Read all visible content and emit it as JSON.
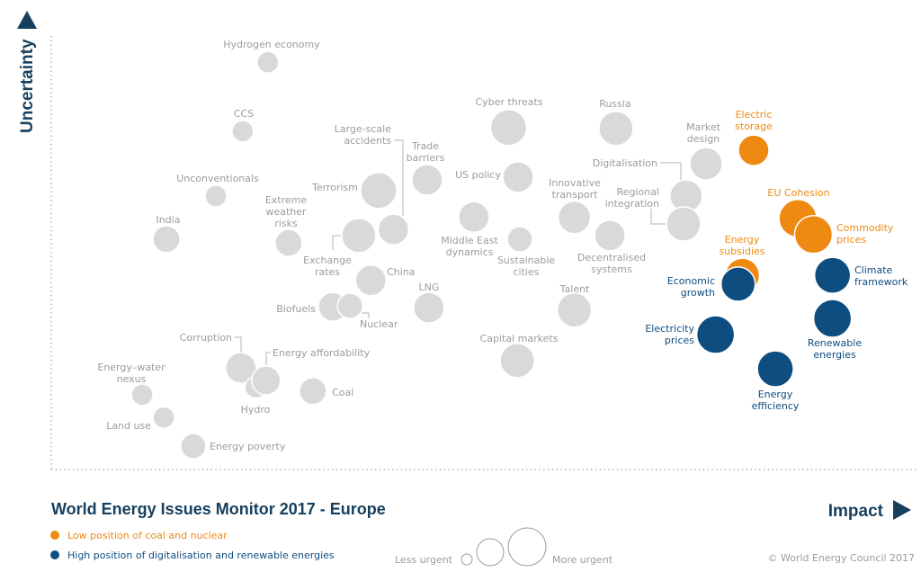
{
  "chart_data": {
    "type": "scatter",
    "title": "World Energy Issues Monitor 2017 - Europe",
    "xlabel": "Impact",
    "ylabel": "Uncertainty",
    "xlim": [
      0,
      100
    ],
    "ylim": [
      0,
      100
    ],
    "grid": false,
    "size_encoding": "urgency",
    "colors": {
      "neutral": "#d9d9d9",
      "orange": "#ee8a12",
      "blue": "#0e4d80",
      "navy": "#17405f"
    },
    "legend": [
      {
        "label": "Low position of coal and nuclear",
        "color": "#ee8a12",
        "group": "orange"
      },
      {
        "label": "High position of digitalisation and renewable energies",
        "color": "#0e4d80",
        "group": "blue"
      }
    ],
    "size_legend": {
      "less": "Less urgent",
      "more": "More urgent"
    },
    "copyright": "© World Energy Council 2017",
    "points": [
      {
        "label": [
          "Hydrogen economy"
        ],
        "impact": 25.0,
        "uncertainty": 88.5,
        "urgency": 2,
        "group": "neutral"
      },
      {
        "label": [
          "CCS"
        ],
        "impact": 22.1,
        "uncertainty": 73.6,
        "urgency": 2,
        "group": "neutral"
      },
      {
        "label": [
          "Unconventionals"
        ],
        "impact": 19.0,
        "uncertainty": 59.6,
        "urgency": 2,
        "group": "neutral"
      },
      {
        "label": [
          "India"
        ],
        "impact": 13.3,
        "uncertainty": 50.3,
        "urgency": 5,
        "group": "neutral"
      },
      {
        "label": [
          "Extreme",
          "weather",
          "risks"
        ],
        "impact": 27.4,
        "uncertainty": 49.5,
        "urgency": 5,
        "group": "neutral"
      },
      {
        "label": [
          "Terrorism"
        ],
        "impact": 37.8,
        "uncertainty": 60.8,
        "urgency": 10,
        "group": "neutral"
      },
      {
        "label": [
          "Large-scale",
          "accidents"
        ],
        "impact": 39.5,
        "uncertainty": 52.4,
        "urgency": 7,
        "group": "neutral"
      },
      {
        "label": [
          "Exchange",
          "rates"
        ],
        "impact": 35.5,
        "uncertainty": 51.1,
        "urgency": 9,
        "group": "neutral"
      },
      {
        "label": [
          "Trade",
          "barriers"
        ],
        "impact": 43.4,
        "uncertainty": 63.1,
        "urgency": 7,
        "group": "neutral"
      },
      {
        "label": [
          "US policy"
        ],
        "impact": 53.9,
        "uncertainty": 63.7,
        "urgency": 7,
        "group": "neutral"
      },
      {
        "label": [
          "Cyber threats"
        ],
        "impact": 52.8,
        "uncertainty": 74.4,
        "urgency": 10,
        "group": "neutral"
      },
      {
        "label": [
          "Russia"
        ],
        "impact": 65.2,
        "uncertainty": 74.2,
        "urgency": 9,
        "group": "neutral"
      },
      {
        "label": [
          "Middle East",
          "dynamics"
        ],
        "impact": 48.8,
        "uncertainty": 55.1,
        "urgency": 7,
        "group": "neutral"
      },
      {
        "label": [
          "Sustainable",
          "cities"
        ],
        "impact": 54.1,
        "uncertainty": 50.3,
        "urgency": 4,
        "group": "neutral"
      },
      {
        "label": [
          "Innovative",
          "transport"
        ],
        "impact": 60.4,
        "uncertainty": 55.0,
        "urgency": 8,
        "group": "neutral"
      },
      {
        "label": [
          "Decentralised",
          "systems"
        ],
        "impact": 64.5,
        "uncertainty": 51.1,
        "urgency": 7,
        "group": "neutral"
      },
      {
        "label": [
          "Market",
          "design"
        ],
        "impact": 75.6,
        "uncertainty": 66.6,
        "urgency": 8,
        "group": "neutral"
      },
      {
        "label": [
          "Digitalisation"
        ],
        "impact": 73.3,
        "uncertainty": 59.6,
        "urgency": 8,
        "group": "neutral"
      },
      {
        "label": [
          "Regional",
          "integration"
        ],
        "impact": 73.0,
        "uncertainty": 53.6,
        "urgency": 9,
        "group": "neutral"
      },
      {
        "label": [
          "Electric",
          "storage"
        ],
        "impact": 81.1,
        "uncertainty": 69.5,
        "urgency": 7,
        "group": "orange"
      },
      {
        "label": [
          "EU Cohesion"
        ],
        "impact": 86.2,
        "uncertainty": 54.8,
        "urgency": 11,
        "group": "orange"
      },
      {
        "label": [
          "Commodity",
          "prices"
        ],
        "impact": 88.0,
        "uncertainty": 51.3,
        "urgency": 11,
        "group": "orange"
      },
      {
        "label": [
          "Energy",
          "subsidies"
        ],
        "impact": 79.8,
        "uncertainty": 42.5,
        "urgency": 9,
        "group": "orange"
      },
      {
        "label": [
          "Economic",
          "growth"
        ],
        "impact": 79.3,
        "uncertainty": 40.6,
        "urgency": 9,
        "group": "blue"
      },
      {
        "label": [
          "Climate",
          "framework"
        ],
        "impact": 90.2,
        "uncertainty": 42.5,
        "urgency": 10,
        "group": "blue"
      },
      {
        "label": [
          "Renewable",
          "energies"
        ],
        "impact": 90.2,
        "uncertainty": 33.2,
        "urgency": 11,
        "group": "blue"
      },
      {
        "label": [
          "Electricity",
          "prices"
        ],
        "impact": 76.7,
        "uncertainty": 29.7,
        "urgency": 11,
        "group": "blue"
      },
      {
        "label": [
          "Energy",
          "efficiency"
        ],
        "impact": 83.6,
        "uncertainty": 22.3,
        "urgency": 10,
        "group": "blue"
      },
      {
        "label": [
          "Talent"
        ],
        "impact": 60.4,
        "uncertainty": 35.0,
        "urgency": 9,
        "group": "neutral"
      },
      {
        "label": [
          "Capital markets"
        ],
        "impact": 53.8,
        "uncertainty": 24.1,
        "urgency": 9,
        "group": "neutral"
      },
      {
        "label": [
          "LNG"
        ],
        "impact": 43.6,
        "uncertainty": 35.5,
        "urgency": 7,
        "group": "neutral"
      },
      {
        "label": [
          "China"
        ],
        "impact": 36.9,
        "uncertainty": 41.4,
        "urgency": 7,
        "group": "neutral"
      },
      {
        "label": [
          "Biofuels"
        ],
        "impact": 32.5,
        "uncertainty": 35.7,
        "urgency": 6,
        "group": "neutral"
      },
      {
        "label": [
          "Nuclear"
        ],
        "impact": 34.5,
        "uncertainty": 35.9,
        "urgency": 4,
        "group": "neutral"
      },
      {
        "label": [
          "Corruption"
        ],
        "impact": 21.9,
        "uncertainty": 22.5,
        "urgency": 7,
        "group": "neutral"
      },
      {
        "label": [
          "Hydro"
        ],
        "impact": 23.6,
        "uncertainty": 18.3,
        "urgency": 2,
        "group": "neutral"
      },
      {
        "label": [
          "Energy affordability"
        ],
        "impact": 24.8,
        "uncertainty": 19.8,
        "urgency": 6,
        "group": "neutral"
      },
      {
        "label": [
          "Coal"
        ],
        "impact": 30.2,
        "uncertainty": 17.5,
        "urgency": 5,
        "group": "neutral"
      },
      {
        "label": [
          "Energy–water",
          "nexus"
        ],
        "impact": 10.5,
        "uncertainty": 16.7,
        "urgency": 2,
        "group": "neutral"
      },
      {
        "label": [
          "Land use"
        ],
        "impact": 13.0,
        "uncertainty": 11.8,
        "urgency": 2,
        "group": "neutral"
      },
      {
        "label": [
          "Energy poverty"
        ],
        "impact": 16.4,
        "uncertainty": 5.6,
        "urgency": 4,
        "group": "neutral"
      }
    ]
  }
}
